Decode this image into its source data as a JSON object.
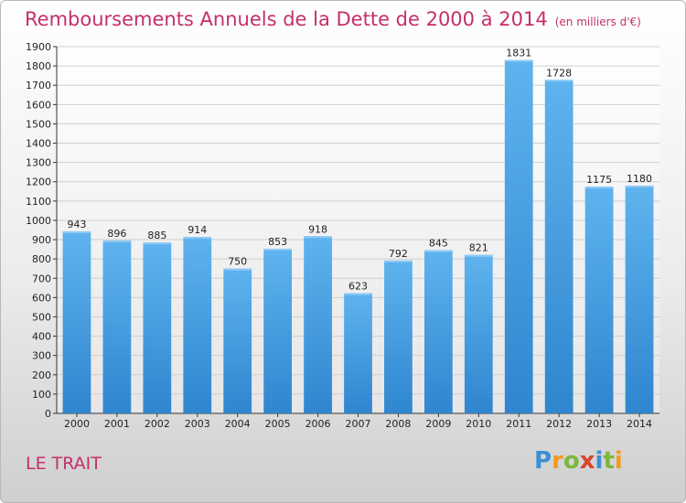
{
  "title": {
    "main": "Remboursements Annuels de la Dette de 2000 à 2014",
    "unit": "(en milliers d'€)"
  },
  "commune": "LE TRAIT",
  "logo": {
    "text": "Proxiti",
    "letters": [
      "P",
      "r",
      "o",
      "x",
      "i",
      "t",
      "i"
    ]
  },
  "colors": {
    "title": "#c42f6a",
    "bar": "#3d9be0",
    "bar_light": "#5fb3ee"
  },
  "chart_data": {
    "type": "bar",
    "categories": [
      "2000",
      "2001",
      "2002",
      "2003",
      "2004",
      "2005",
      "2006",
      "2007",
      "2008",
      "2009",
      "2010",
      "2011",
      "2012",
      "2013",
      "2014"
    ],
    "values": [
      943,
      896,
      885,
      914,
      750,
      853,
      918,
      623,
      792,
      845,
      821,
      1831,
      1728,
      1175,
      1180
    ],
    "ylim": [
      0,
      1900
    ],
    "yticks": [
      0,
      100,
      200,
      300,
      400,
      500,
      600,
      700,
      800,
      900,
      1000,
      1100,
      1200,
      1300,
      1400,
      1500,
      1600,
      1700,
      1800,
      1900
    ],
    "grid": true,
    "xlabel": "",
    "ylabel": ""
  }
}
